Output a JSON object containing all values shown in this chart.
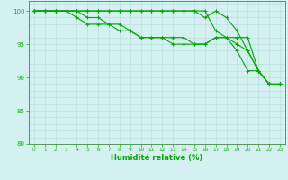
{
  "series": [
    {
      "x": [
        0,
        1,
        2,
        3,
        4,
        5,
        6,
        7,
        8,
        9,
        10,
        11,
        12,
        13,
        14,
        15,
        16,
        17,
        18,
        19,
        20,
        21,
        22,
        23
      ],
      "y": [
        100,
        100,
        100,
        100,
        100,
        100,
        100,
        100,
        100,
        100,
        100,
        100,
        100,
        100,
        100,
        100,
        99,
        100,
        99,
        97,
        94,
        91,
        89,
        89
      ]
    },
    {
      "x": [
        0,
        1,
        2,
        3,
        4,
        5,
        6,
        7,
        8,
        9,
        10,
        11,
        12,
        13,
        14,
        15,
        16,
        17,
        18,
        19,
        20,
        21,
        22,
        23
      ],
      "y": [
        100,
        100,
        100,
        100,
        100,
        100,
        100,
        100,
        100,
        100,
        100,
        100,
        100,
        100,
        100,
        100,
        100,
        97,
        96,
        96,
        96,
        91,
        89,
        89
      ]
    },
    {
      "x": [
        0,
        1,
        2,
        3,
        4,
        5,
        6,
        7,
        8,
        9,
        10,
        11,
        12,
        13,
        14,
        15,
        16,
        17,
        18,
        19,
        20,
        21,
        22,
        23
      ],
      "y": [
        100,
        100,
        100,
        100,
        99,
        98,
        98,
        98,
        98,
        97,
        96,
        96,
        96,
        96,
        96,
        95,
        95,
        96,
        96,
        95,
        94,
        91,
        89,
        89
      ]
    },
    {
      "x": [
        0,
        1,
        2,
        3,
        4,
        5,
        6,
        7,
        8,
        9,
        10,
        11,
        12,
        13,
        14,
        15,
        16,
        17,
        18,
        19,
        20,
        21,
        22,
        23
      ],
      "y": [
        100,
        100,
        100,
        100,
        100,
        99,
        99,
        98,
        97,
        97,
        96,
        96,
        96,
        95,
        95,
        95,
        95,
        96,
        96,
        94,
        91,
        91,
        89,
        89
      ]
    }
  ],
  "xlabel": "Humidité relative (%)",
  "xlim": [
    -0.5,
    23.5
  ],
  "ylim": [
    80,
    101.5
  ],
  "yticks": [
    80,
    85,
    90,
    95,
    100
  ],
  "xticks": [
    0,
    1,
    2,
    3,
    4,
    5,
    6,
    7,
    8,
    9,
    10,
    11,
    12,
    13,
    14,
    15,
    16,
    17,
    18,
    19,
    20,
    21,
    22,
    23
  ],
  "bg_color": "#d4f0f0",
  "grid_major_color": "#b8dede",
  "grid_minor_color": "#c8eaea",
  "line_color": "#00aa00",
  "marker": "+",
  "marker_size": 3,
  "marker_edge_width": 0.8,
  "line_width": 0.8,
  "tick_label_color": "#00bb00",
  "xlabel_color": "#00aa00",
  "axis_color": "#448844",
  "tick_label_size": 5,
  "xlabel_size": 6
}
